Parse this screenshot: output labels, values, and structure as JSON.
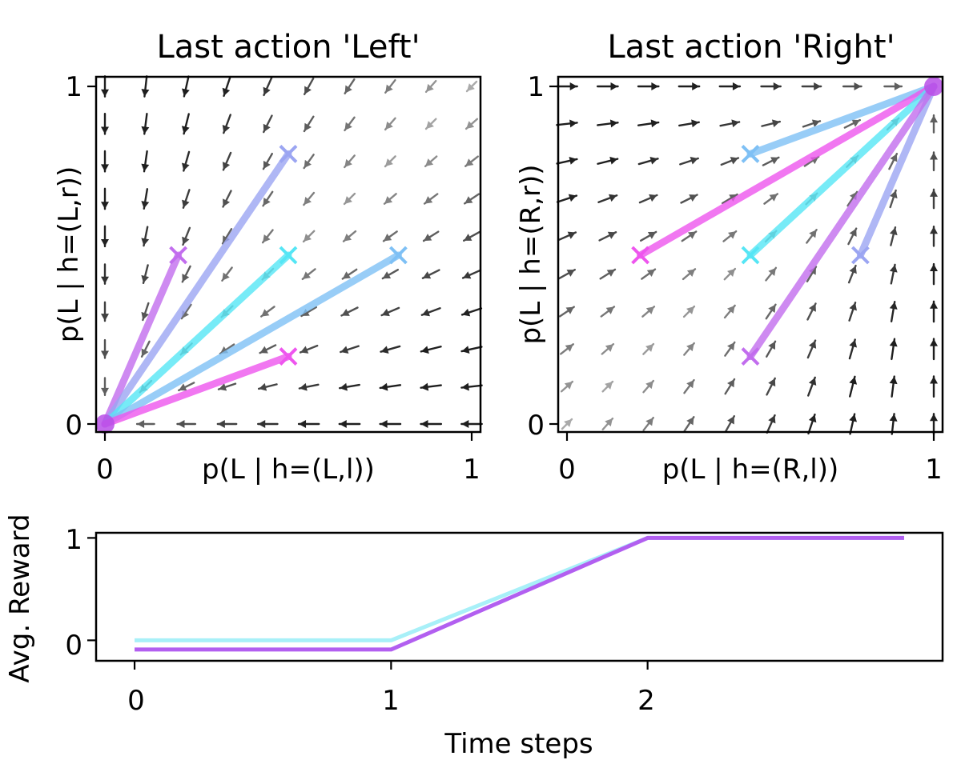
{
  "chart_data": [
    {
      "type": "quiver",
      "title": "Last action 'Left'",
      "xlabel": "p(L | h=(L,l))",
      "ylabel": "p(L | h=(L,r))",
      "xlim": [
        0,
        1
      ],
      "ylim": [
        0,
        1
      ],
      "xticks": [
        "0",
        "1"
      ],
      "yticks": [
        "0",
        "1"
      ],
      "grid": false,
      "field": {
        "direction": "toward (0, 0)",
        "grid_points": [
          0,
          0.111,
          0.222,
          0.333,
          0.444,
          0.556,
          0.667,
          0.778,
          0.889,
          1.0
        ]
      },
      "trajectories": [
        {
          "color": "#c26dee",
          "points": [
            [
              0.2,
              0.5
            ],
            [
              0,
              0
            ]
          ]
        },
        {
          "color": "#9ba5f2",
          "points": [
            [
              0.5,
              0.8
            ],
            [
              0,
              0
            ]
          ]
        },
        {
          "color": "#55e6f5",
          "points": [
            [
              0.5,
              0.5
            ],
            [
              0,
              0
            ]
          ]
        },
        {
          "color": "#7ec0f5",
          "points": [
            [
              0.8,
              0.5
            ],
            [
              0,
              0
            ]
          ]
        },
        {
          "color": "#ee55ee",
          "points": [
            [
              0.5,
              0.2
            ],
            [
              0,
              0
            ]
          ]
        }
      ]
    },
    {
      "type": "quiver",
      "title": "Last action 'Right'",
      "xlabel": "p(L | h=(R,l))",
      "ylabel": "p(L | h=(R,r))",
      "xlim": [
        0,
        1
      ],
      "ylim": [
        0,
        1
      ],
      "xticks": [
        "0",
        "1"
      ],
      "yticks": [
        "0",
        "1"
      ],
      "grid": false,
      "field": {
        "direction": "toward (1, 1)",
        "grid_points": [
          0,
          0.111,
          0.222,
          0.333,
          0.444,
          0.556,
          0.667,
          0.778,
          0.889,
          1.0
        ]
      },
      "trajectories": [
        {
          "color": "#7ec0f5",
          "points": [
            [
              0.5,
              0.8
            ],
            [
              1,
              1
            ]
          ]
        },
        {
          "color": "#ee55ee",
          "points": [
            [
              0.2,
              0.5
            ],
            [
              1,
              1
            ]
          ]
        },
        {
          "color": "#55e6f5",
          "points": [
            [
              0.5,
              0.5
            ],
            [
              1,
              1
            ]
          ]
        },
        {
          "color": "#9ba5f2",
          "points": [
            [
              0.8,
              0.5
            ],
            [
              1,
              1
            ]
          ]
        },
        {
          "color": "#c26dee",
          "points": [
            [
              0.5,
              0.2
            ],
            [
              1,
              1
            ]
          ]
        }
      ]
    },
    {
      "type": "line",
      "xlabel": "Time steps",
      "ylabel": "Avg. Reward",
      "xlim": [
        -0.15,
        3.15
      ],
      "ylim": [
        -0.2,
        1.05
      ],
      "xticks": [
        "0",
        "1",
        "2"
      ],
      "yticks": [
        "0",
        "1"
      ],
      "grid": false,
      "series": [
        {
          "color": "#a8f0f8",
          "x": [
            0,
            1,
            2,
            3
          ],
          "y": [
            0.0,
            0.0,
            1.0,
            1.0
          ]
        },
        {
          "color": "#b25ff0",
          "x": [
            0,
            1,
            2,
            3
          ],
          "y": [
            -0.09,
            -0.09,
            1.0,
            1.0
          ]
        }
      ]
    }
  ]
}
